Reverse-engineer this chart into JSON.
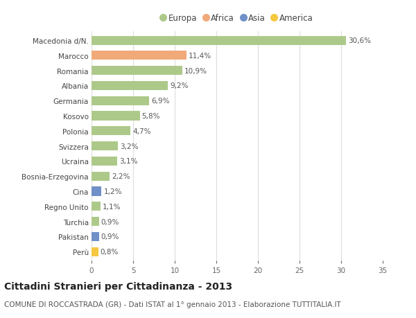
{
  "categories": [
    "Macedonia d/N.",
    "Marocco",
    "Romania",
    "Albania",
    "Germania",
    "Kosovo",
    "Polonia",
    "Svizzera",
    "Ucraina",
    "Bosnia-Erzegovina",
    "Cina",
    "Regno Unito",
    "Turchia",
    "Pakistan",
    "Perù"
  ],
  "values": [
    30.6,
    11.4,
    10.9,
    9.2,
    6.9,
    5.8,
    4.7,
    3.2,
    3.1,
    2.2,
    1.2,
    1.1,
    0.9,
    0.9,
    0.8
  ],
  "labels": [
    "30,6%",
    "11,4%",
    "10,9%",
    "9,2%",
    "6,9%",
    "5,8%",
    "4,7%",
    "3,2%",
    "3,1%",
    "2,2%",
    "1,2%",
    "1,1%",
    "0,9%",
    "0,9%",
    "0,8%"
  ],
  "colors": [
    "#adc98a",
    "#f0aa7a",
    "#adc98a",
    "#adc98a",
    "#adc98a",
    "#adc98a",
    "#adc98a",
    "#adc98a",
    "#adc98a",
    "#adc98a",
    "#7090c8",
    "#adc98a",
    "#adc98a",
    "#7090c8",
    "#f5c842"
  ],
  "legend_labels": [
    "Europa",
    "Africa",
    "Asia",
    "America"
  ],
  "legend_colors": [
    "#adc98a",
    "#f0aa7a",
    "#7090c8",
    "#f5c842"
  ],
  "title": "Cittadini Stranieri per Cittadinanza - 2013",
  "subtitle": "COMUNE DI ROCCASTRADA (GR) - Dati ISTAT al 1° gennaio 2013 - Elaborazione TUTTITALIA.IT",
  "xlim": [
    0,
    35
  ],
  "xticks": [
    0,
    5,
    10,
    15,
    20,
    25,
    30,
    35
  ],
  "bg_color": "#ffffff",
  "grid_color": "#dddddd",
  "bar_height": 0.6,
  "title_fontsize": 10,
  "subtitle_fontsize": 7.5,
  "label_fontsize": 7.5,
  "tick_fontsize": 7.5,
  "legend_fontsize": 8.5
}
